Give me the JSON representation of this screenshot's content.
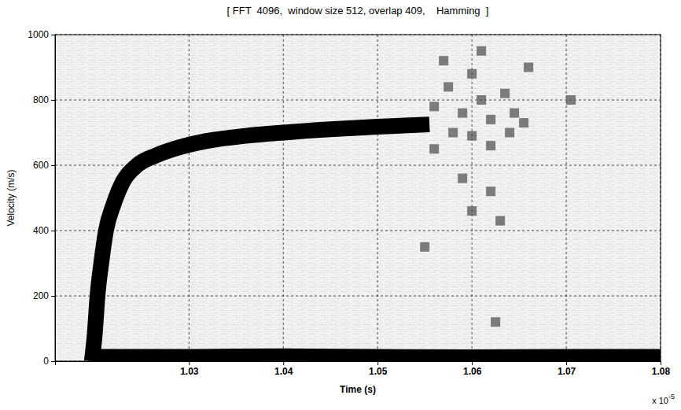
{
  "chart_data": {
    "type": "line",
    "title": "[ FFT  4096,  window size 512, overlap 409,    Hamming  ]",
    "x_label": "Time (s)",
    "y_label": "Velocity (m/s)",
    "annotations": [
      {
        "text": "x 10",
        "superscript": "-5"
      }
    ],
    "xlim": [
      1.0158,
      1.08
    ],
    "ylim": [
      0,
      1000
    ],
    "xticks": [
      1.03,
      1.04,
      1.05,
      1.06,
      1.07,
      1.08
    ],
    "yticks": [
      0,
      200,
      400,
      600,
      800,
      1000
    ],
    "grid": true,
    "series": [
      {
        "type": "line",
        "color": "#000000",
        "line_style": "solid",
        "x": [
          1.0197,
          1.02,
          1.0203,
          1.0207,
          1.0212,
          1.022,
          1.023,
          1.0245,
          1.0265,
          1.029,
          1.032,
          1.036,
          1.04,
          1.045,
          1.05,
          1.0555
        ],
        "values": [
          0,
          80,
          200,
          300,
          400,
          480,
          550,
          600,
          630,
          655,
          675,
          690,
          700,
          710,
          718,
          725
        ]
      },
      {
        "type": "line",
        "color": "#000000",
        "line_style": "solid",
        "x": [
          1.0197,
          1.03,
          1.04,
          1.05,
          1.06,
          1.07,
          1.08
        ],
        "values": [
          18,
          18,
          20,
          18,
          17,
          18,
          18
        ]
      },
      {
        "type": "scatter",
        "color": "#4a4a4a",
        "marker": "square",
        "x": [
          1.056,
          1.0575,
          1.059,
          1.06,
          1.061,
          1.062,
          1.0635,
          1.0645,
          1.056,
          1.058,
          1.06,
          1.062,
          1.064,
          1.0655,
          1.059,
          1.062,
          1.06,
          1.063,
          1.057,
          1.061,
          1.066,
          1.0705,
          1.055,
          1.0625
        ],
        "values": [
          780,
          840,
          760,
          880,
          800,
          740,
          820,
          760,
          650,
          700,
          690,
          660,
          700,
          730,
          560,
          520,
          460,
          430,
          920,
          950,
          900,
          800,
          350,
          120
        ]
      }
    ]
  }
}
